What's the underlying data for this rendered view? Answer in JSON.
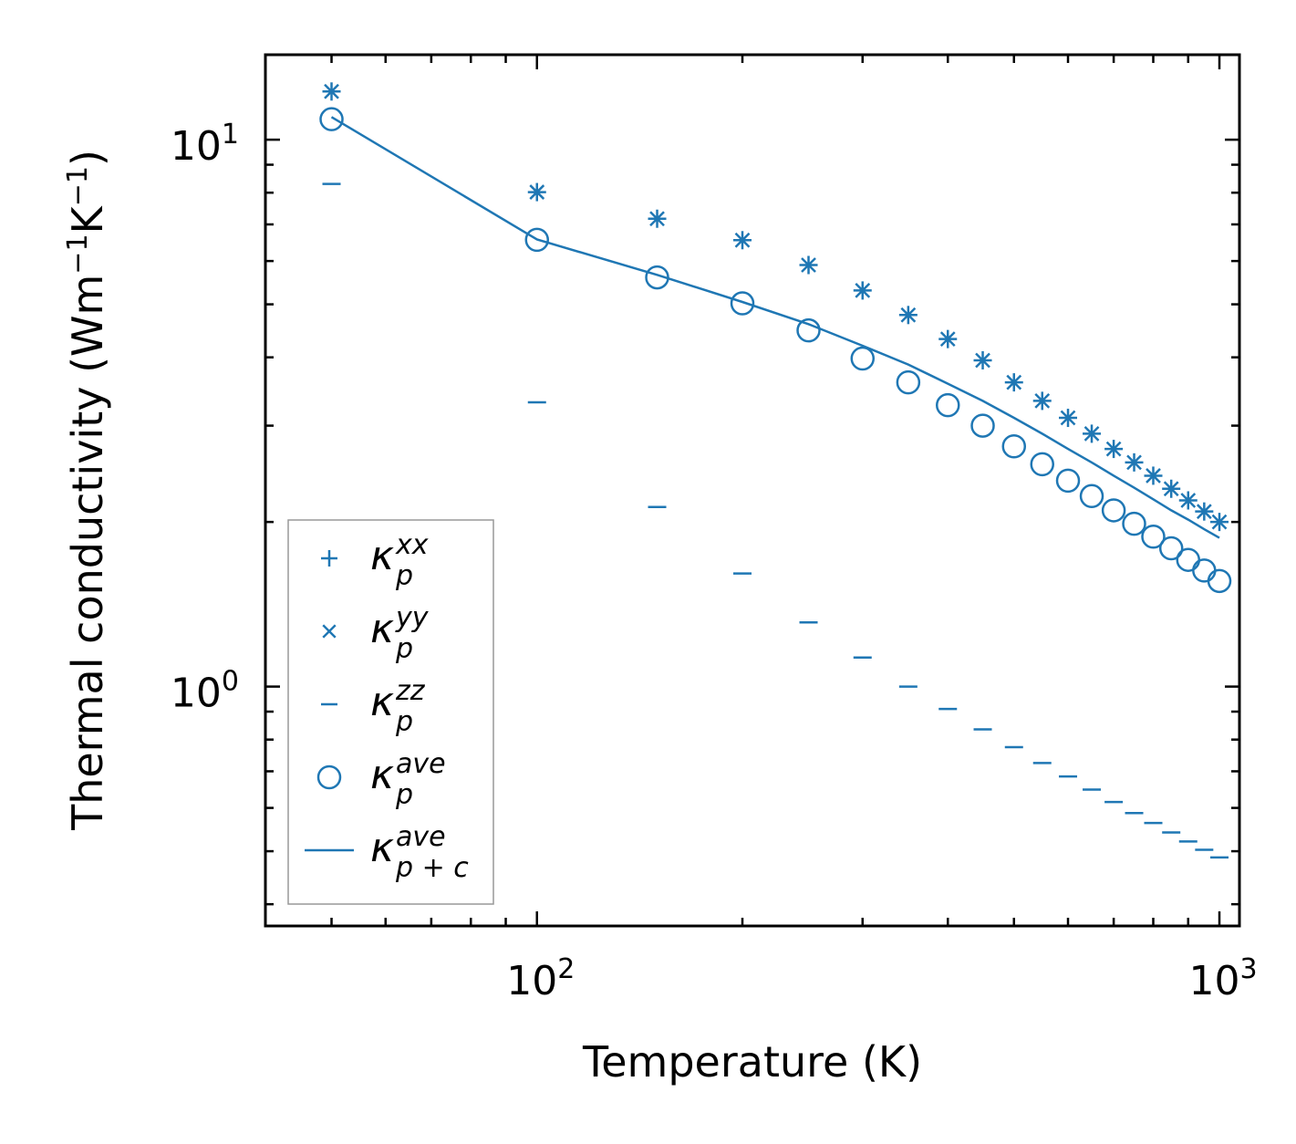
{
  "chart_data": {
    "type": "scatter",
    "title": "",
    "xlabel": "Temperature (K)",
    "ylabel": {
      "main": "Thermal conductivity (Wm",
      "exp1": "−1",
      "mid": "K",
      "exp2": "−1",
      "end": ")"
    },
    "xscale": "log",
    "yscale": "log",
    "xlim": [
      40,
      1070
    ],
    "ylim": [
      0.365,
      14.3
    ],
    "x_ticks": [
      {
        "value": 100,
        "base": "10",
        "exp": "2"
      },
      {
        "value": 1000,
        "base": "10",
        "exp": "3"
      }
    ],
    "y_ticks": [
      {
        "value": 1,
        "base": "10",
        "exp": "0"
      },
      {
        "value": 10,
        "base": "10",
        "exp": "1"
      }
    ],
    "grid": false,
    "legend_position": "lower-left",
    "x": [
      50,
      100,
      150,
      200,
      250,
      300,
      350,
      400,
      450,
      500,
      550,
      600,
      650,
      700,
      750,
      800,
      850,
      900,
      950,
      1000
    ],
    "series": [
      {
        "name": "kxx",
        "legend": {
          "base": "κ",
          "sub": "p",
          "sup": "xx"
        },
        "marker": "plus",
        "values": [
          12.25,
          8.02,
          7.17,
          6.55,
          5.9,
          5.3,
          4.78,
          4.32,
          3.95,
          3.6,
          3.33,
          3.1,
          2.9,
          2.72,
          2.57,
          2.43,
          2.3,
          2.19,
          2.09,
          2.0
        ]
      },
      {
        "name": "kyy",
        "legend": {
          "base": "κ",
          "sub": "p",
          "sup": "yy"
        },
        "marker": "x",
        "values": [
          12.25,
          8.02,
          7.17,
          6.55,
          5.9,
          5.3,
          4.78,
          4.32,
          3.95,
          3.6,
          3.33,
          3.1,
          2.9,
          2.72,
          2.57,
          2.43,
          2.3,
          2.19,
          2.09,
          2.0
        ]
      },
      {
        "name": "kzz",
        "legend": {
          "base": "κ",
          "sub": "p",
          "sup": "zz"
        },
        "marker": "hline",
        "values": [
          8.3,
          3.31,
          2.13,
          1.61,
          1.31,
          1.13,
          1.0,
          0.91,
          0.835,
          0.775,
          0.725,
          0.685,
          0.648,
          0.615,
          0.587,
          0.563,
          0.541,
          0.521,
          0.503,
          0.487
        ]
      },
      {
        "name": "kave",
        "legend": {
          "base": "κ",
          "sub": "p",
          "sup": "ave"
        },
        "marker": "circle",
        "values": [
          10.9,
          6.56,
          5.6,
          5.02,
          4.48,
          3.98,
          3.6,
          3.27,
          3.0,
          2.75,
          2.55,
          2.38,
          2.23,
          2.1,
          1.985,
          1.88,
          1.79,
          1.705,
          1.63,
          1.56
        ]
      },
      {
        "name": "kave_pc",
        "legend": {
          "base": "κ",
          "sub": "p + c",
          "sup": "ave"
        },
        "marker": "line",
        "x": [
          50,
          100,
          150,
          200,
          250,
          300,
          350,
          400,
          450,
          500,
          550,
          600,
          650,
          700,
          750,
          800,
          850,
          900,
          950,
          1000
        ],
        "values": [
          11.0,
          6.57,
          5.66,
          5.05,
          4.6,
          4.2,
          3.88,
          3.58,
          3.33,
          3.1,
          2.9,
          2.72,
          2.57,
          2.43,
          2.31,
          2.2,
          2.1,
          2.02,
          1.94,
          1.87
        ]
      }
    ]
  },
  "colors": {
    "series": "#1f77b4",
    "axis": "#000000",
    "legend_border": "#999999"
  }
}
